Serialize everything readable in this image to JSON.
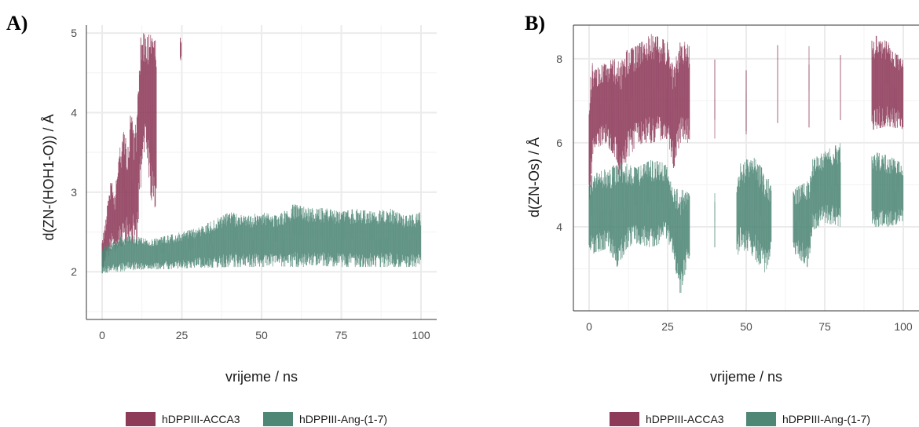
{
  "figure": {
    "panel_a_label": "A)",
    "panel_b_label": "B)"
  },
  "colors": {
    "ACCA3": "#8e3a59",
    "Ang": "#4e8776",
    "grid_major": "#ebebeb",
    "grid_minor": "#f3f3f3",
    "tick_text": "#4d4d4d"
  },
  "chart_data": [
    {
      "type": "area",
      "panel": "A)",
      "title": "",
      "xlabel": "vrijeme / ns",
      "ylabel": "d(ZN-(HOH1-O)) / Å",
      "xlim": [
        0,
        100
      ],
      "ylim": [
        1.4,
        5.1
      ],
      "x_ticks": [
        0,
        25,
        50,
        75,
        100
      ],
      "y_ticks": [
        2,
        3,
        4,
        5
      ],
      "grid": true,
      "legend_position": "bottom",
      "series": [
        {
          "name": "hDPPIII-ACCA3",
          "x": [
            0,
            1,
            2,
            3,
            4,
            5,
            6,
            7,
            8,
            9,
            10,
            11,
            12,
            13,
            14,
            15,
            16,
            17,
            24.5,
            24.9
          ],
          "y_min": [
            2.0,
            2.15,
            2.2,
            2.25,
            2.25,
            2.3,
            2.3,
            2.35,
            2.4,
            2.3,
            2.4,
            2.3,
            3.0,
            3.5,
            3.5,
            3.0,
            2.8,
            2.5,
            4.65,
            4.65
          ],
          "y_max": [
            2.4,
            2.6,
            3.0,
            3.2,
            2.9,
            3.5,
            3.6,
            3.8,
            3.5,
            4.1,
            3.7,
            4.0,
            5.0,
            5.0,
            5.0,
            5.0,
            4.9,
            5.0,
            4.95,
            4.95
          ]
        },
        {
          "name": "hDPPIII-Ang-(1-7)",
          "x": [
            0,
            5,
            10,
            15,
            20,
            25,
            30,
            35,
            40,
            45,
            50,
            55,
            60,
            65,
            70,
            75,
            80,
            85,
            90,
            95,
            100
          ],
          "y_min": [
            1.98,
            2.0,
            2.02,
            2.03,
            2.03,
            2.04,
            2.05,
            2.05,
            2.06,
            2.06,
            2.06,
            2.07,
            2.06,
            2.06,
            2.07,
            2.06,
            2.06,
            2.06,
            2.06,
            2.06,
            2.06
          ],
          "y_max": [
            2.3,
            2.45,
            2.45,
            2.4,
            2.45,
            2.5,
            2.55,
            2.65,
            2.75,
            2.7,
            2.75,
            2.7,
            2.85,
            2.8,
            2.8,
            2.75,
            2.8,
            2.75,
            2.8,
            2.7,
            2.75
          ]
        }
      ]
    },
    {
      "type": "area",
      "panel": "B)",
      "title": "",
      "xlabel": "vrijeme / ns",
      "ylabel": "d(ZN-Os) / Å",
      "xlim": [
        0,
        100
      ],
      "ylim": [
        2.0,
        8.8
      ],
      "x_ticks": [
        0,
        25,
        50,
        75,
        100
      ],
      "y_ticks": [
        4,
        6,
        8
      ],
      "grid": true,
      "legend_position": "bottom",
      "series": [
        {
          "name": "hDPPIII-ACCA3",
          "x": [
            0,
            1,
            3,
            5,
            8,
            10,
            12,
            15,
            20,
            25,
            27,
            29,
            32,
            40,
            50,
            60,
            70,
            80,
            90,
            95,
            100
          ],
          "y_min": [
            4.5,
            5.5,
            5.9,
            6.0,
            5.7,
            5.0,
            5.6,
            5.9,
            6.0,
            6.1,
            5.3,
            6.0,
            6.0,
            6.1,
            6.2,
            6.3,
            6.2,
            6.2,
            6.3,
            6.4,
            6.3
          ],
          "y_max": [
            7.3,
            7.9,
            7.8,
            7.9,
            8.0,
            7.9,
            8.2,
            8.3,
            8.6,
            8.4,
            7.8,
            8.5,
            8.3,
            8.0,
            8.2,
            8.5,
            8.3,
            8.5,
            8.6,
            8.4,
            8.1
          ]
        },
        {
          "name": "hDPPIII-Ang-(1-7)",
          "x": [
            0,
            3,
            6,
            9,
            12,
            15,
            20,
            25,
            27,
            29,
            32,
            40,
            47,
            48,
            52,
            56,
            58,
            65,
            70,
            71,
            75,
            80,
            90,
            95,
            100
          ],
          "y_min": [
            3.3,
            3.4,
            3.5,
            3.0,
            3.5,
            3.6,
            3.5,
            3.7,
            3.2,
            2.35,
            3.3,
            3.4,
            3.2,
            3.5,
            3.3,
            2.9,
            3.3,
            3.4,
            3.0,
            3.9,
            4.1,
            4.0,
            4.0,
            4.0,
            4.1
          ],
          "y_max": [
            5.2,
            5.3,
            5.4,
            5.5,
            5.5,
            5.4,
            5.6,
            5.5,
            4.9,
            4.9,
            4.8,
            4.8,
            4.9,
            5.5,
            5.7,
            5.3,
            5.0,
            4.9,
            5.1,
            5.6,
            5.8,
            6.0,
            5.8,
            5.7,
            5.5
          ]
        }
      ]
    }
  ]
}
